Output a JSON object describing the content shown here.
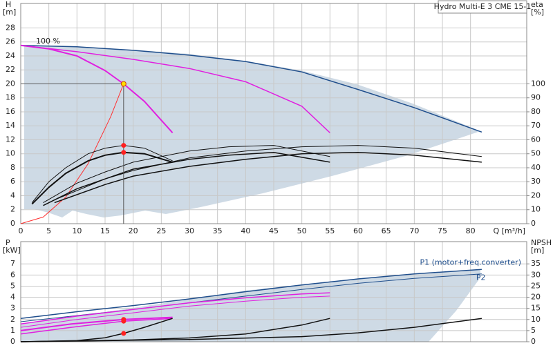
{
  "chart_data": [
    {
      "type": "line",
      "title": "Hydro Multi-E 3 CME 15-1",
      "annotation": "100 %",
      "y_label": [
        "H",
        "[m]"
      ],
      "y2_label": [
        "eta",
        "[%]"
      ],
      "x_label": "Q [m³/h]",
      "xlim": [
        0,
        90
      ],
      "ylim": [
        0,
        31.5
      ],
      "y2lim": [
        0,
        157.5
      ],
      "xticks": [
        0,
        5,
        10,
        15,
        20,
        25,
        30,
        35,
        40,
        45,
        50,
        55,
        60,
        65,
        70,
        75,
        80
      ],
      "yticks": [
        0,
        2,
        4,
        6,
        8,
        10,
        12,
        14,
        16,
        18,
        20,
        22,
        24,
        26,
        28
      ],
      "y2ticks": [
        0,
        10,
        20,
        30,
        40,
        50,
        60,
        70,
        80,
        90,
        100
      ],
      "grid": true,
      "show_xtick_labels": true,
      "series": [
        {
          "color": "#1f4e8c",
          "width": 1.5,
          "x": [
            0,
            10,
            20,
            30,
            40,
            50,
            60,
            70,
            82
          ],
          "values": [
            25.5,
            25.3,
            24.8,
            24.1,
            23.2,
            21.7,
            19.2,
            16.6,
            13.1
          ]
        },
        {
          "color": "#e020e0",
          "width": 1.5,
          "x": [
            0,
            10,
            20,
            30,
            40,
            50,
            55
          ],
          "values": [
            25.5,
            24.6,
            23.5,
            22.2,
            20.3,
            16.8,
            13.0
          ]
        },
        {
          "color": "#e020e0",
          "width": 2,
          "x": [
            0,
            5,
            10,
            15,
            18.3,
            22,
            27
          ],
          "values": [
            25.5,
            25.0,
            24.0,
            21.9,
            20.0,
            17.5,
            13.0
          ]
        },
        {
          "color": "#ff3030",
          "width": 1,
          "x": [
            0,
            4,
            8,
            12,
            16,
            18.3
          ],
          "values": [
            0,
            0.95,
            3.8,
            8.6,
            15.3,
            20
          ]
        },
        {
          "color": "#111111",
          "width": 1,
          "axis": "y2",
          "x": [
            2,
            5,
            8,
            12,
            15,
            18.3,
            22,
            27
          ],
          "values": [
            15,
            30,
            40,
            50,
            54,
            56,
            54,
            45
          ]
        },
        {
          "color": "#111111",
          "width": 2,
          "axis": "y2",
          "x": [
            2,
            5,
            8,
            12,
            15,
            18.3,
            22,
            27
          ],
          "values": [
            14,
            26,
            36,
            45,
            49,
            51,
            50,
            44
          ]
        },
        {
          "color": "#111111",
          "width": 1,
          "axis": "y2",
          "x": [
            4,
            10,
            15,
            20,
            30,
            37,
            45,
            55
          ],
          "values": [
            15,
            29,
            37,
            44,
            52,
            55,
            56,
            48
          ]
        },
        {
          "color": "#111111",
          "width": 1.5,
          "axis": "y2",
          "x": [
            4,
            10,
            15,
            20,
            30,
            37,
            45,
            55
          ],
          "values": [
            13,
            25,
            32,
            39,
            46,
            49,
            51,
            44
          ]
        },
        {
          "color": "#111111",
          "width": 1,
          "axis": "y2",
          "x": [
            6,
            15,
            20,
            30,
            40,
            50,
            60,
            70,
            82
          ],
          "values": [
            17,
            32,
            38,
            47,
            52,
            55,
            56,
            54,
            48
          ]
        },
        {
          "color": "#111111",
          "width": 1.5,
          "axis": "y2",
          "x": [
            6,
            15,
            20,
            30,
            40,
            50,
            60,
            70,
            82
          ],
          "values": [
            15,
            28,
            34,
            41,
            46,
            50,
            51,
            49,
            44
          ]
        },
        {
          "color": "#ffe000",
          "marker": true,
          "crosshair": true,
          "x": [
            18.3
          ],
          "values": [
            20
          ]
        },
        {
          "color": "#ff2020",
          "marker": true,
          "axis": "y2",
          "x": [
            18.3,
            18.3
          ],
          "values": [
            56,
            51
          ]
        }
      ]
    },
    {
      "type": "line",
      "y_label": [
        "P",
        "[kW]"
      ],
      "y2_label": [
        "NPSH",
        "[m]"
      ],
      "xlim": [
        0,
        90
      ],
      "ylim": [
        0,
        9
      ],
      "y2lim": [
        0,
        45
      ],
      "xticks": [
        0,
        5,
        10,
        15,
        20,
        25,
        30,
        35,
        40,
        45,
        50,
        55,
        60,
        65,
        70,
        75,
        80
      ],
      "yticks": [
        0,
        1,
        2,
        3,
        4,
        5,
        6,
        7
      ],
      "y2ticks": [
        0,
        5,
        10,
        15,
        20,
        25,
        30,
        35
      ],
      "grid": true,
      "show_xtick_labels": false,
      "series": [
        {
          "name": "P1 (motor+freq.converter)",
          "color": "#1f4e8c",
          "width": 1.5,
          "x": [
            0,
            10,
            20,
            30,
            40,
            50,
            60,
            70,
            82
          ],
          "values": [
            2.1,
            2.7,
            3.25,
            3.85,
            4.5,
            5.1,
            5.65,
            6.1,
            6.5
          ]
        },
        {
          "name": "P2",
          "color": "#1f4e8c",
          "width": 1,
          "x": [
            0,
            10,
            20,
            30,
            40,
            50,
            60,
            70,
            82
          ],
          "values": [
            1.8,
            2.35,
            2.9,
            3.5,
            4.1,
            4.7,
            5.25,
            5.7,
            6.1
          ]
        },
        {
          "color": "#e020e0",
          "width": 1.5,
          "x": [
            0,
            10,
            20,
            30,
            40,
            50,
            55
          ],
          "values": [
            1.6,
            2.3,
            2.9,
            3.5,
            3.95,
            4.3,
            4.4
          ]
        },
        {
          "color": "#e020e0",
          "width": 1,
          "x": [
            0,
            10,
            20,
            30,
            40,
            50,
            55
          ],
          "values": [
            1.3,
            2.0,
            2.6,
            3.2,
            3.65,
            4.0,
            4.1
          ]
        },
        {
          "color": "#e020e0",
          "width": 2,
          "x": [
            0,
            9,
            18.3,
            27
          ],
          "values": [
            1.0,
            1.6,
            2.0,
            2.2
          ]
        },
        {
          "color": "#e020e0",
          "width": 1.5,
          "x": [
            0,
            9,
            18.3,
            27
          ],
          "values": [
            0.7,
            1.3,
            1.85,
            2.1
          ]
        },
        {
          "color": "#111111",
          "width": 1.5,
          "axis": "y2",
          "x": [
            0,
            10,
            15,
            18.3,
            22,
            27
          ],
          "values": [
            0,
            0.5,
            1.8,
            3.75,
            6.5,
            10.5
          ]
        },
        {
          "color": "#111111",
          "width": 1.5,
          "axis": "y2",
          "x": [
            0,
            20,
            30,
            40,
            50,
            55
          ],
          "values": [
            0,
            0.8,
            1.7,
            3.5,
            7.5,
            10.5
          ]
        },
        {
          "color": "#111111",
          "width": 1.5,
          "axis": "y2",
          "x": [
            0,
            30,
            50,
            60,
            70,
            82
          ],
          "values": [
            0,
            1,
            2.3,
            4,
            6.5,
            10.5
          ]
        },
        {
          "color": "#ff2020",
          "marker": true,
          "x": [
            18.3,
            18.3
          ],
          "values": [
            2.0,
            1.85
          ]
        },
        {
          "color": "#ff2020",
          "marker": true,
          "axis": "y2",
          "x": [
            18.3
          ],
          "values": [
            3.75
          ]
        }
      ]
    }
  ]
}
